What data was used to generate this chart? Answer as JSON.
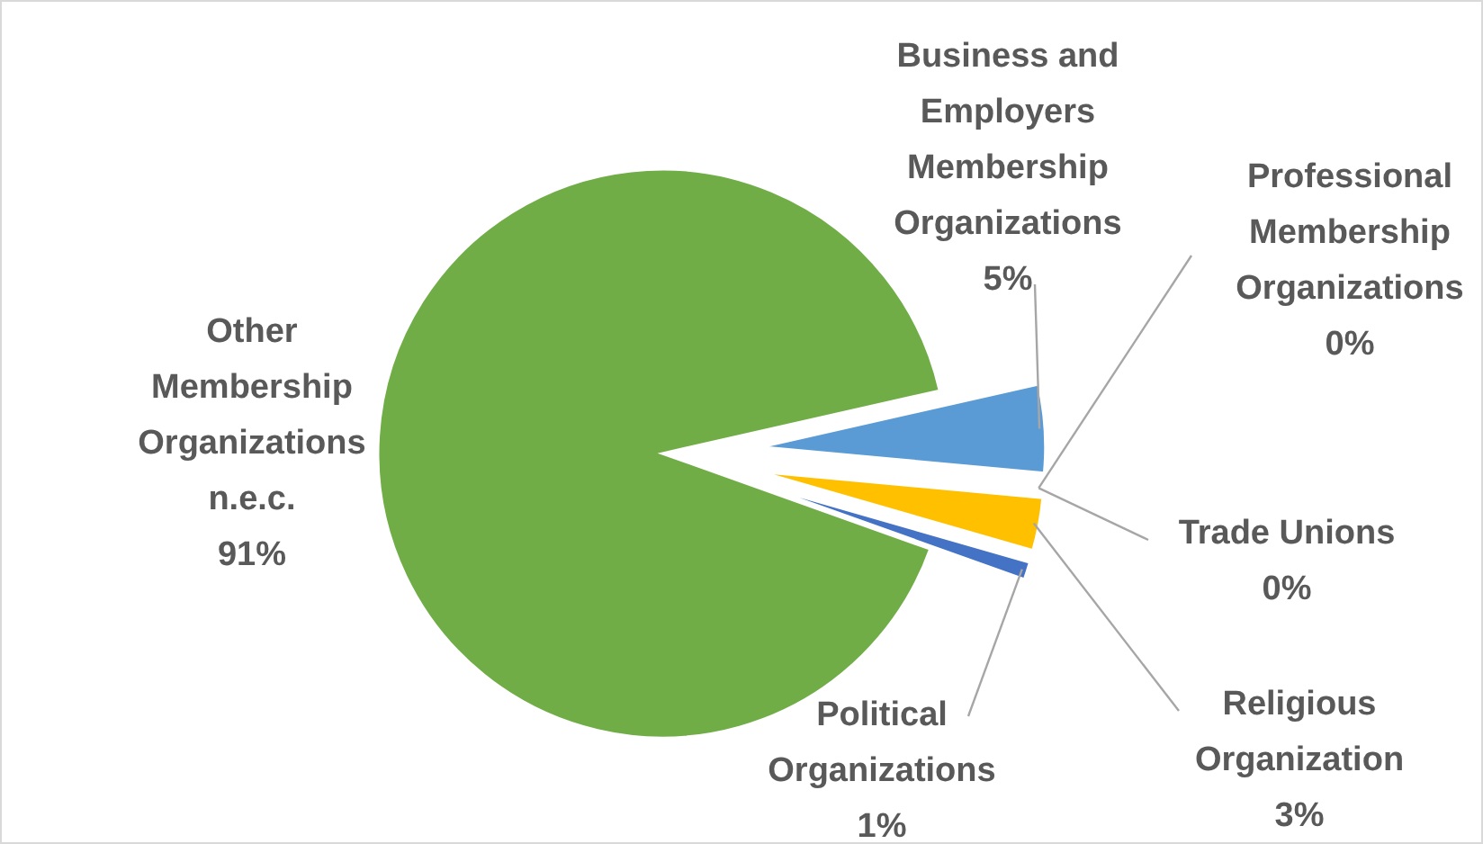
{
  "chart_data": {
    "type": "pie",
    "categories": [
      "Business and Employers Membership Organizations",
      "Professional Membership Organizations",
      "Trade Unions",
      "Religious Organization",
      "Political Organizations",
      "Other Membership Organizations n.e.c."
    ],
    "values": [
      5,
      0,
      0,
      3,
      1,
      91
    ],
    "colors": [
      "#5b9bd5",
      null,
      null,
      "#ffc000",
      "#4472c4",
      "#70ad47"
    ],
    "value_labels": [
      "5%",
      "0%",
      "0%",
      "3%",
      "1%",
      "91%"
    ]
  }
}
